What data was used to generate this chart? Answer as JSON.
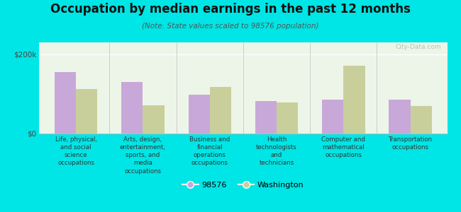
{
  "title": "Occupation by median earnings in the past 12 months",
  "subtitle": "(Note: State values scaled to 98576 population)",
  "categories": [
    "Life, physical,\nand social\nscience\noccupations",
    "Arts, design,\nentertainment,\nsports, and\nmedia\noccupations",
    "Business and\nfinancial\noperations\noccupations",
    "Health\ntechnologists\nand\ntechnicians",
    "Computer and\nmathematical\noccupations",
    "Transportation\noccupations"
  ],
  "values_98576": [
    155000,
    130000,
    98000,
    82000,
    85000,
    85000
  ],
  "values_washington": [
    112000,
    72000,
    118000,
    78000,
    172000,
    70000
  ],
  "color_98576": "#c8a8d8",
  "color_washington": "#c8cf9a",
  "ylim": [
    0,
    230000
  ],
  "ytick_labels": [
    "$0",
    "$200k"
  ],
  "ytick_vals": [
    0,
    200000
  ],
  "legend_label_1": "98576",
  "legend_label_2": "Washington",
  "background_color": "#00e5e5",
  "chart_bg": "#e8f5e8",
  "watermark": "City-Data.com",
  "bar_width": 0.32
}
